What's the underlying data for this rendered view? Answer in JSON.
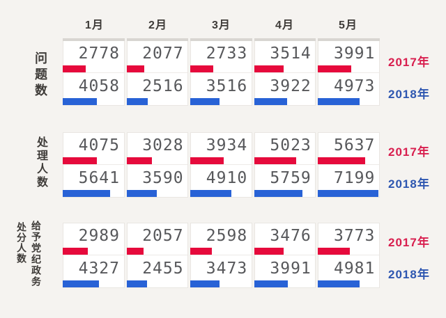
{
  "chart_data": {
    "type": "bar",
    "orientation": "horizontal",
    "title": "",
    "categories": [
      "1月",
      "2月",
      "3月",
      "4月",
      "5月"
    ],
    "value_max": 7199,
    "grid": false,
    "legend_position": "right",
    "colors": {
      "bar_2017": "#e60a3c",
      "bar_2018": "#2862d6",
      "text_2017": "#d81e4e",
      "text_2018": "#2d56b0"
    },
    "groups": [
      {
        "label": "问题数",
        "label_lines": [
          "问题数"
        ],
        "series": [
          {
            "name": "2017年",
            "values": [
              2778,
              2077,
              2733,
              3514,
              3991
            ]
          },
          {
            "name": "2018年",
            "values": [
              4058,
              2516,
              3516,
              3922,
              4973
            ]
          }
        ]
      },
      {
        "label": "处理人数",
        "label_lines": [
          "处理人数"
        ],
        "series": [
          {
            "name": "2017年",
            "values": [
              4075,
              3028,
              3934,
              5023,
              5637
            ]
          },
          {
            "name": "2018年",
            "values": [
              5641,
              3590,
              4910,
              5759,
              7199
            ]
          }
        ]
      },
      {
        "label": "给予党纪政务处分人数",
        "label_lines": [
          "给予党纪政务",
          "处分人数"
        ],
        "series": [
          {
            "name": "2017年",
            "values": [
              2989,
              2057,
              2598,
              3476,
              3773
            ]
          },
          {
            "name": "2018年",
            "values": [
              4327,
              2455,
              3473,
              3991,
              4981
            ]
          }
        ]
      }
    ]
  }
}
